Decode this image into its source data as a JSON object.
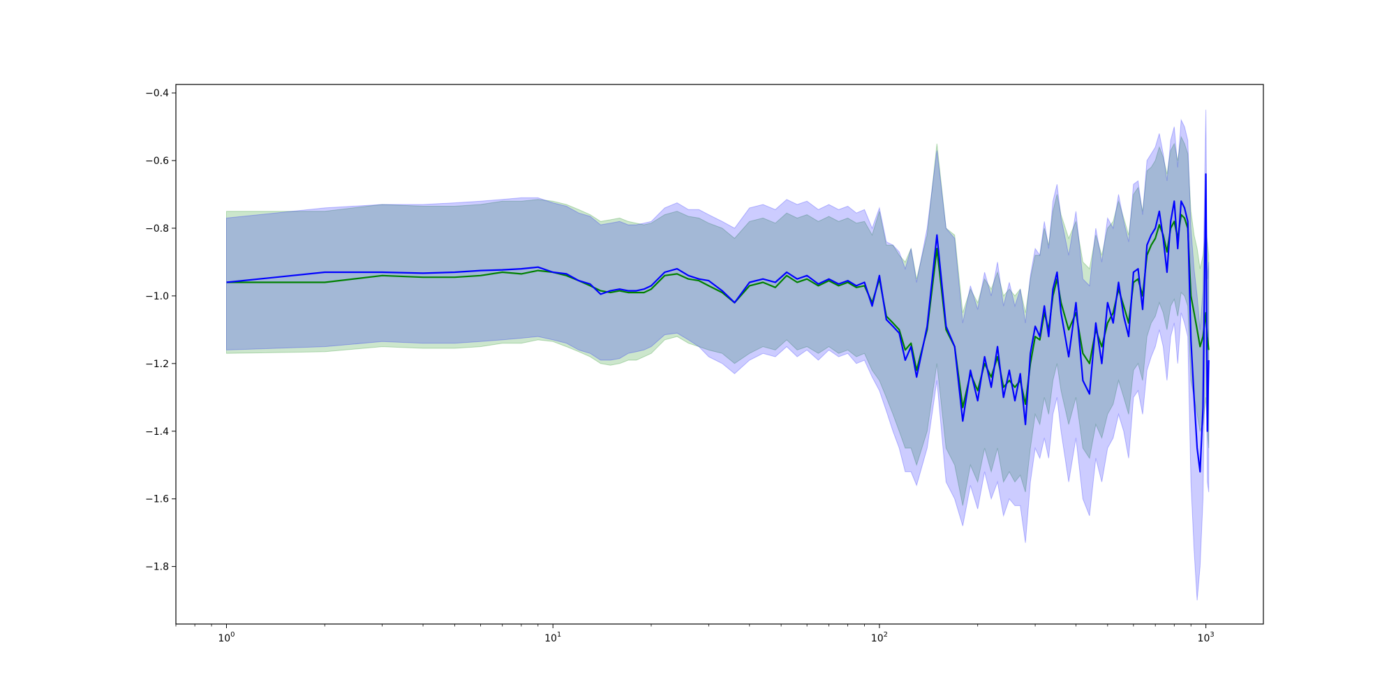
{
  "chart_data": {
    "type": "line",
    "title": "",
    "xlabel": "",
    "ylabel": "",
    "xscale": "log",
    "xlim": [
      0.7,
      1500
    ],
    "ylim": [
      -1.97,
      -0.375
    ],
    "grid": false,
    "legend": "none",
    "x_ticks": [
      {
        "value": 1,
        "base": "10",
        "exp": "0"
      },
      {
        "value": 10,
        "base": "10",
        "exp": "1"
      },
      {
        "value": 100,
        "base": "10",
        "exp": "2"
      },
      {
        "value": 1000,
        "base": "10",
        "exp": "3"
      }
    ],
    "y_ticks": [
      {
        "value": -0.4,
        "label": "−0.4"
      },
      {
        "value": -0.6,
        "label": "−0.6"
      },
      {
        "value": -0.8,
        "label": "−0.8"
      },
      {
        "value": -1.0,
        "label": "−1.0"
      },
      {
        "value": -1.2,
        "label": "−1.2"
      },
      {
        "value": -1.4,
        "label": "−1.4"
      },
      {
        "value": -1.6,
        "label": "−1.6"
      },
      {
        "value": -1.8,
        "label": "−1.8"
      }
    ],
    "x": [
      1,
      2,
      3,
      4,
      5,
      6,
      7,
      8,
      9,
      10,
      11,
      12,
      13,
      14,
      15,
      16,
      17,
      18,
      19,
      20,
      22,
      24,
      26,
      28,
      30,
      33,
      36,
      40,
      44,
      48,
      52,
      56,
      60,
      65,
      70,
      75,
      80,
      85,
      90,
      95,
      100,
      105,
      110,
      115,
      120,
      125,
      130,
      140,
      150,
      160,
      170,
      180,
      190,
      200,
      210,
      220,
      230,
      240,
      250,
      260,
      270,
      280,
      290,
      300,
      310,
      320,
      330,
      340,
      350,
      360,
      380,
      400,
      420,
      440,
      460,
      480,
      500,
      520,
      540,
      560,
      580,
      600,
      620,
      640,
      660,
      680,
      700,
      720,
      740,
      760,
      780,
      800,
      820,
      840,
      860,
      880,
      900,
      920,
      940,
      960,
      980,
      1000,
      1010,
      1020
    ],
    "series": [
      {
        "color": "#008000",
        "values": [
          -0.96,
          -0.96,
          -0.94,
          -0.945,
          -0.945,
          -0.94,
          -0.93,
          -0.935,
          -0.925,
          -0.93,
          -0.94,
          -0.955,
          -0.97,
          -0.985,
          -0.99,
          -0.985,
          -0.99,
          -0.99,
          -0.99,
          -0.98,
          -0.94,
          -0.935,
          -0.95,
          -0.955,
          -0.97,
          -0.99,
          -1.02,
          -0.97,
          -0.96,
          -0.975,
          -0.94,
          -0.96,
          -0.95,
          -0.97,
          -0.955,
          -0.97,
          -0.96,
          -0.975,
          -0.97,
          -1.02,
          -0.95,
          -1.06,
          -1.08,
          -1.1,
          -1.16,
          -1.14,
          -1.22,
          -1.1,
          -0.86,
          -1.1,
          -1.15,
          -1.33,
          -1.23,
          -1.28,
          -1.2,
          -1.24,
          -1.18,
          -1.27,
          -1.25,
          -1.27,
          -1.25,
          -1.32,
          -1.2,
          -1.12,
          -1.13,
          -1.05,
          -1.1,
          -1.0,
          -0.95,
          -1.02,
          -1.1,
          -1.05,
          -1.17,
          -1.2,
          -1.1,
          -1.15,
          -1.08,
          -1.05,
          -0.98,
          -1.03,
          -1.08,
          -0.96,
          -0.95,
          -1.0,
          -0.88,
          -0.85,
          -0.83,
          -0.79,
          -0.82,
          -0.87,
          -0.8,
          -0.78,
          -0.83,
          -0.76,
          -0.77,
          -0.8,
          -1.0,
          -1.05,
          -1.1,
          -1.15,
          -1.12,
          -1.05,
          -1.12,
          -1.16
        ]
      },
      {
        "color": "#0000ff",
        "values": [
          -0.96,
          -0.93,
          -0.93,
          -0.933,
          -0.93,
          -0.925,
          -0.923,
          -0.92,
          -0.915,
          -0.93,
          -0.935,
          -0.955,
          -0.965,
          -0.995,
          -0.985,
          -0.98,
          -0.985,
          -0.985,
          -0.98,
          -0.97,
          -0.93,
          -0.92,
          -0.94,
          -0.95,
          -0.955,
          -0.985,
          -1.02,
          -0.96,
          -0.95,
          -0.96,
          -0.93,
          -0.95,
          -0.94,
          -0.965,
          -0.95,
          -0.965,
          -0.955,
          -0.97,
          -0.96,
          -1.03,
          -0.94,
          -1.07,
          -1.09,
          -1.11,
          -1.19,
          -1.15,
          -1.24,
          -1.09,
          -0.82,
          -1.09,
          -1.15,
          -1.37,
          -1.22,
          -1.31,
          -1.18,
          -1.27,
          -1.15,
          -1.3,
          -1.22,
          -1.31,
          -1.23,
          -1.38,
          -1.17,
          -1.09,
          -1.12,
          -1.03,
          -1.12,
          -0.98,
          -0.93,
          -1.05,
          -1.18,
          -1.02,
          -1.25,
          -1.29,
          -1.08,
          -1.2,
          -1.02,
          -1.08,
          -0.96,
          -1.06,
          -1.12,
          -0.93,
          -0.92,
          -1.04,
          -0.85,
          -0.82,
          -0.8,
          -0.75,
          -0.83,
          -0.93,
          -0.78,
          -0.72,
          -0.86,
          -0.72,
          -0.74,
          -0.78,
          -1.13,
          -1.3,
          -1.45,
          -1.52,
          -1.33,
          -0.64,
          -1.4,
          -1.19
        ]
      }
    ],
    "bands": [
      {
        "color": "#008000",
        "lower": [
          -1.17,
          -1.165,
          -1.15,
          -1.155,
          -1.155,
          -1.15,
          -1.14,
          -1.14,
          -1.13,
          -1.135,
          -1.15,
          -1.165,
          -1.18,
          -1.2,
          -1.205,
          -1.2,
          -1.19,
          -1.19,
          -1.18,
          -1.17,
          -1.13,
          -1.12,
          -1.14,
          -1.15,
          -1.16,
          -1.17,
          -1.2,
          -1.17,
          -1.15,
          -1.16,
          -1.13,
          -1.16,
          -1.15,
          -1.17,
          -1.15,
          -1.17,
          -1.16,
          -1.18,
          -1.17,
          -1.22,
          -1.25,
          -1.3,
          -1.35,
          -1.4,
          -1.45,
          -1.45,
          -1.5,
          -1.4,
          -1.2,
          -1.45,
          -1.5,
          -1.62,
          -1.5,
          -1.55,
          -1.45,
          -1.52,
          -1.45,
          -1.55,
          -1.52,
          -1.55,
          -1.53,
          -1.58,
          -1.45,
          -1.35,
          -1.38,
          -1.3,
          -1.35,
          -1.25,
          -1.2,
          -1.28,
          -1.38,
          -1.3,
          -1.45,
          -1.48,
          -1.38,
          -1.42,
          -1.35,
          -1.32,
          -1.25,
          -1.3,
          -1.35,
          -1.22,
          -1.2,
          -1.25,
          -1.12,
          -1.08,
          -1.06,
          -1.02,
          -1.05,
          -1.1,
          -1.03,
          -1.01,
          -1.06,
          -0.99,
          -1.0,
          -1.03,
          -1.25,
          -1.3,
          -1.35,
          -1.4,
          -1.38,
          -1.3,
          -1.4,
          -1.45
        ],
        "upper": [
          -0.75,
          -0.75,
          -0.73,
          -0.735,
          -0.735,
          -0.73,
          -0.72,
          -0.72,
          -0.715,
          -0.72,
          -0.73,
          -0.745,
          -0.76,
          -0.78,
          -0.775,
          -0.77,
          -0.78,
          -0.785,
          -0.79,
          -0.785,
          -0.76,
          -0.75,
          -0.765,
          -0.77,
          -0.785,
          -0.8,
          -0.83,
          -0.78,
          -0.77,
          -0.785,
          -0.755,
          -0.77,
          -0.76,
          -0.78,
          -0.765,
          -0.78,
          -0.77,
          -0.785,
          -0.78,
          -0.82,
          -0.75,
          -0.85,
          -0.85,
          -0.88,
          -0.9,
          -0.86,
          -0.95,
          -0.82,
          -0.55,
          -0.8,
          -0.82,
          -1.05,
          -0.98,
          -1.02,
          -0.95,
          -0.98,
          -0.93,
          -1.0,
          -0.98,
          -1.0,
          -0.98,
          -1.05,
          -0.95,
          -0.88,
          -0.88,
          -0.8,
          -0.85,
          -0.75,
          -0.7,
          -0.76,
          -0.83,
          -0.78,
          -0.9,
          -0.92,
          -0.82,
          -0.88,
          -0.8,
          -0.78,
          -0.72,
          -0.77,
          -0.82,
          -0.7,
          -0.68,
          -0.75,
          -0.63,
          -0.62,
          -0.6,
          -0.56,
          -0.59,
          -0.64,
          -0.57,
          -0.55,
          -0.6,
          -0.53,
          -0.55,
          -0.58,
          -0.75,
          -0.82,
          -0.86,
          -0.92,
          -0.88,
          -0.8,
          -0.84,
          -0.88
        ]
      },
      {
        "color": "#0000ff",
        "lower": [
          -1.16,
          -1.15,
          -1.135,
          -1.14,
          -1.14,
          -1.135,
          -1.13,
          -1.125,
          -1.12,
          -1.13,
          -1.14,
          -1.16,
          -1.17,
          -1.19,
          -1.19,
          -1.185,
          -1.17,
          -1.165,
          -1.16,
          -1.15,
          -1.115,
          -1.11,
          -1.13,
          -1.15,
          -1.18,
          -1.2,
          -1.23,
          -1.19,
          -1.17,
          -1.18,
          -1.15,
          -1.18,
          -1.16,
          -1.19,
          -1.16,
          -1.18,
          -1.17,
          -1.2,
          -1.19,
          -1.24,
          -1.28,
          -1.34,
          -1.4,
          -1.45,
          -1.52,
          -1.52,
          -1.56,
          -1.45,
          -1.25,
          -1.55,
          -1.6,
          -1.68,
          -1.56,
          -1.63,
          -1.52,
          -1.6,
          -1.55,
          -1.65,
          -1.6,
          -1.62,
          -1.62,
          -1.73,
          -1.55,
          -1.45,
          -1.48,
          -1.42,
          -1.48,
          -1.35,
          -1.3,
          -1.4,
          -1.55,
          -1.42,
          -1.6,
          -1.65,
          -1.48,
          -1.55,
          -1.45,
          -1.42,
          -1.35,
          -1.4,
          -1.48,
          -1.3,
          -1.28,
          -1.35,
          -1.22,
          -1.18,
          -1.15,
          -1.1,
          -1.15,
          -1.25,
          -1.12,
          -1.08,
          -1.2,
          -1.05,
          -1.08,
          -1.12,
          -1.55,
          -1.75,
          -1.9,
          -1.8,
          -1.6,
          -1.05,
          -1.55,
          -1.58
        ],
        "upper": [
          -0.77,
          -0.74,
          -0.73,
          -0.73,
          -0.725,
          -0.72,
          -0.715,
          -0.71,
          -0.71,
          -0.725,
          -0.735,
          -0.755,
          -0.765,
          -0.79,
          -0.785,
          -0.78,
          -0.79,
          -0.79,
          -0.785,
          -0.78,
          -0.74,
          -0.725,
          -0.745,
          -0.745,
          -0.76,
          -0.78,
          -0.8,
          -0.74,
          -0.73,
          -0.745,
          -0.715,
          -0.73,
          -0.72,
          -0.745,
          -0.73,
          -0.745,
          -0.735,
          -0.755,
          -0.745,
          -0.8,
          -0.74,
          -0.84,
          -0.85,
          -0.87,
          -0.92,
          -0.86,
          -0.96,
          -0.8,
          -0.57,
          -0.8,
          -0.83,
          -1.08,
          -0.97,
          -1.04,
          -0.93,
          -1.0,
          -0.9,
          -1.03,
          -0.96,
          -1.03,
          -0.98,
          -1.08,
          -0.94,
          -0.86,
          -0.88,
          -0.78,
          -0.86,
          -0.72,
          -0.67,
          -0.77,
          -0.88,
          -0.75,
          -0.95,
          -0.97,
          -0.8,
          -0.9,
          -0.77,
          -0.8,
          -0.7,
          -0.78,
          -0.84,
          -0.67,
          -0.66,
          -0.76,
          -0.6,
          -0.58,
          -0.56,
          -0.52,
          -0.58,
          -0.66,
          -0.54,
          -0.5,
          -0.62,
          -0.48,
          -0.5,
          -0.54,
          -0.8,
          -0.92,
          -1.0,
          -1.1,
          -0.98,
          -0.45,
          -0.95,
          -0.9
        ]
      }
    ]
  }
}
